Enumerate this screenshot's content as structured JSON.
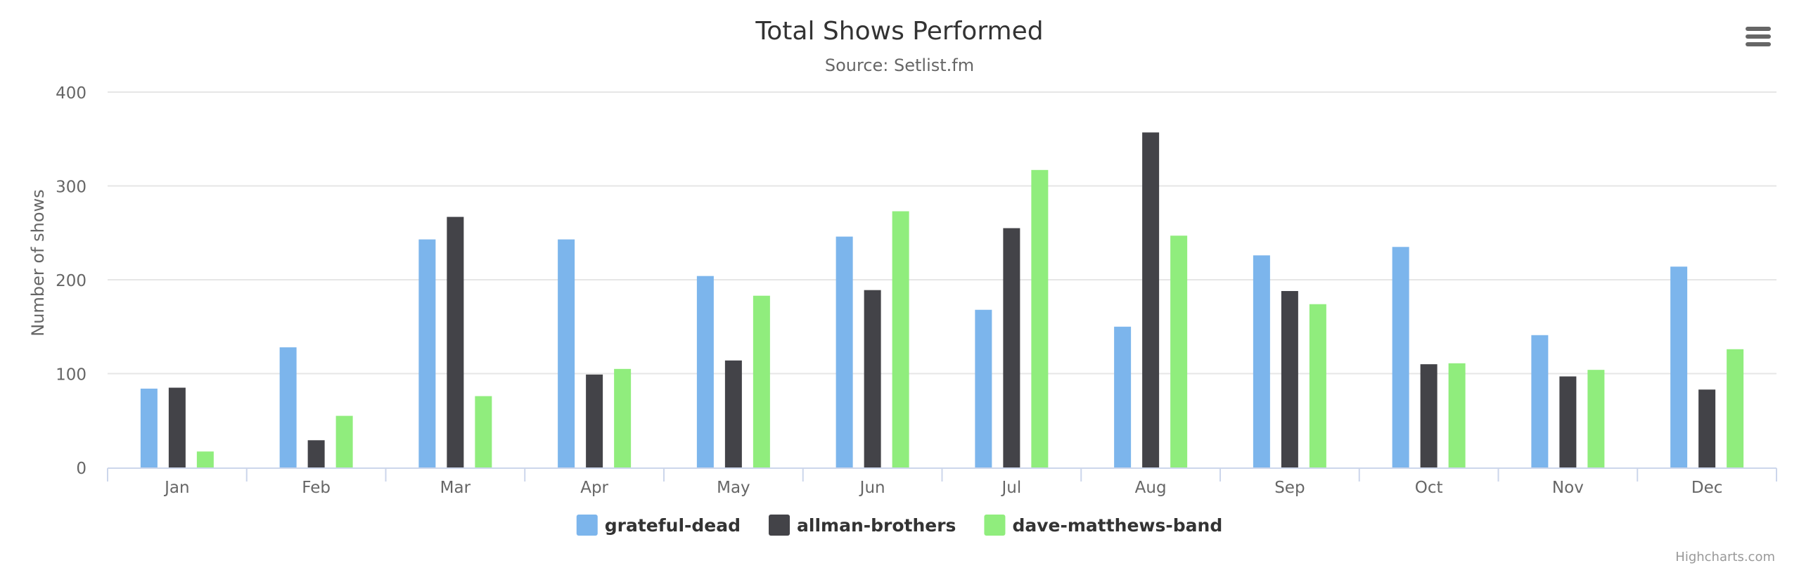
{
  "chart_data": {
    "type": "bar",
    "title": "Total Shows Performed",
    "subtitle": "Source: Setlist.fm",
    "ylabel": "Number of shows",
    "xlabel": "",
    "ylim": [
      0,
      400
    ],
    "yticks": [
      0,
      100,
      200,
      300,
      400
    ],
    "categories": [
      "Jan",
      "Feb",
      "Mar",
      "Apr",
      "May",
      "Jun",
      "Jul",
      "Aug",
      "Sep",
      "Oct",
      "Nov",
      "Dec"
    ],
    "series": [
      {
        "name": "grateful-dead",
        "color": "#7cb5ec",
        "values": [
          84,
          128,
          243,
          243,
          204,
          246,
          168,
          150,
          226,
          235,
          141,
          214
        ]
      },
      {
        "name": "allman-brothers",
        "color": "#434348",
        "values": [
          85,
          29,
          267,
          99,
          114,
          189,
          255,
          357,
          188,
          110,
          97,
          83
        ]
      },
      {
        "name": "dave-matthews-band",
        "color": "#90ed7d",
        "values": [
          17,
          55,
          76,
          105,
          183,
          273,
          317,
          247,
          174,
          111,
          104,
          126
        ]
      }
    ],
    "grid": true,
    "legend_position": "bottom-center"
  },
  "credits": "Highcharts.com",
  "menu_icon": "hamburger-menu-icon",
  "colors": {
    "gridline": "#e6e6e6",
    "axis_line": "#ccd6eb",
    "text": "#333333",
    "label": "#666666"
  }
}
